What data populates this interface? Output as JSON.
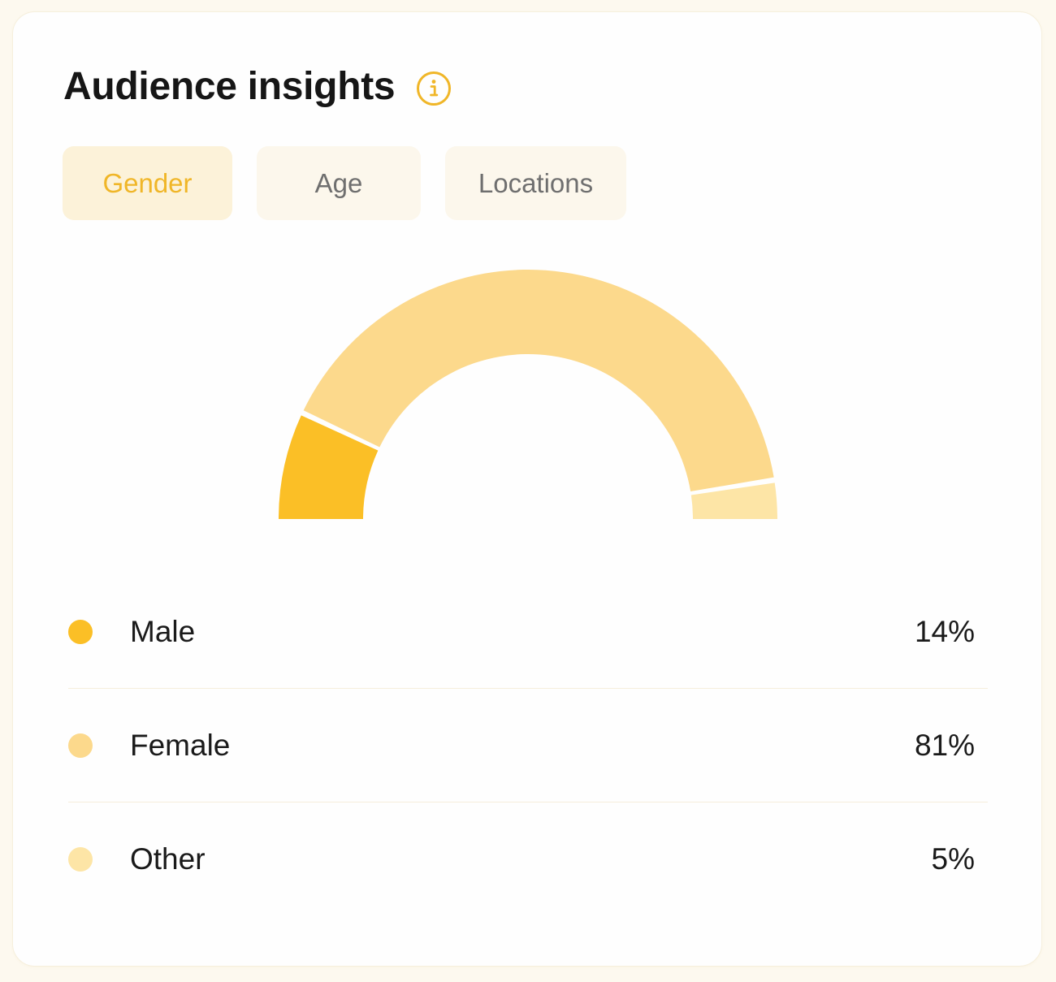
{
  "card": {
    "title": "Audience insights",
    "info_icon": "info-circle-icon"
  },
  "tabs": [
    {
      "label": "Gender",
      "active": true
    },
    {
      "label": "Age",
      "active": false
    },
    {
      "label": "Locations",
      "active": false
    }
  ],
  "colors": {
    "accent": "#f0b628",
    "male": "#fbbf26",
    "female": "#fcd98c",
    "other": "#fde5a6",
    "tab_bg": "#fcf7ec",
    "tab_active_bg": "#fcf2d9"
  },
  "chart_data": {
    "type": "pie",
    "style": "half-donut",
    "categories": [
      "Male",
      "Female",
      "Other"
    ],
    "values": [
      14,
      81,
      5
    ],
    "unit": "%"
  },
  "legend": [
    {
      "label": "Male",
      "value": "14%"
    },
    {
      "label": "Female",
      "value": "81%"
    },
    {
      "label": "Other",
      "value": "5%"
    }
  ]
}
